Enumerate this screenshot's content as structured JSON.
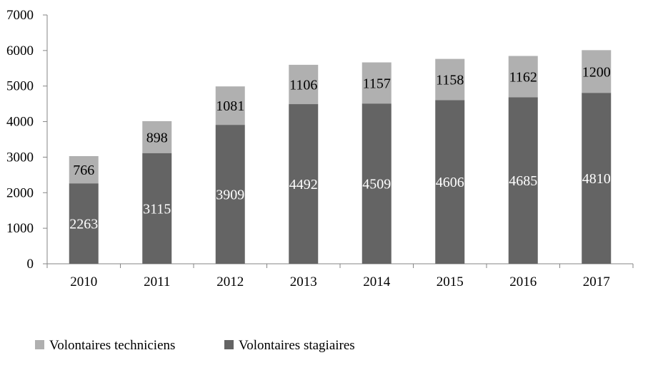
{
  "chart_data": {
    "type": "bar",
    "stacked": true,
    "categories": [
      "2010",
      "2011",
      "2012",
      "2013",
      "2014",
      "2015",
      "2016",
      "2017"
    ],
    "series": [
      {
        "name": "Volontaires stagiaires",
        "values": [
          2263,
          3115,
          3909,
          4492,
          4509,
          4606,
          4685,
          4810
        ],
        "color": "#646464",
        "label_color": "#ffffff"
      },
      {
        "name": "Volontaires techniciens",
        "values": [
          766,
          898,
          1081,
          1106,
          1157,
          1158,
          1162,
          1200
        ],
        "color": "#b0b0b0",
        "label_color": "#000000"
      }
    ],
    "yticks": [
      "0",
      "1000",
      "2000",
      "3000",
      "4000",
      "5000",
      "6000",
      "7000"
    ],
    "ylim": [
      0,
      7000
    ],
    "grid": false,
    "legend_position": "bottom-left",
    "legend_order": [
      "Volontaires techniciens",
      "Volontaires stagiaires"
    ]
  }
}
